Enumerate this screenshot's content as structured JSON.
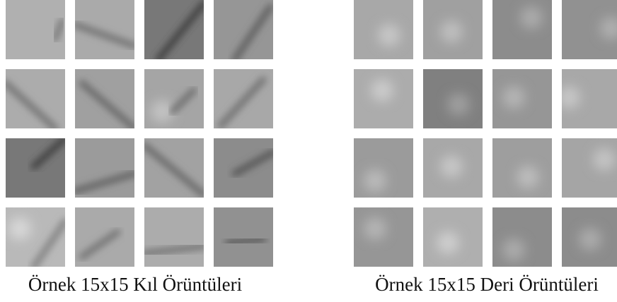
{
  "captions": {
    "left": "Örnek 15x15 Kıl Örüntüleri",
    "right": "Örnek 15x15 Deri Örüntüleri"
  }
}
